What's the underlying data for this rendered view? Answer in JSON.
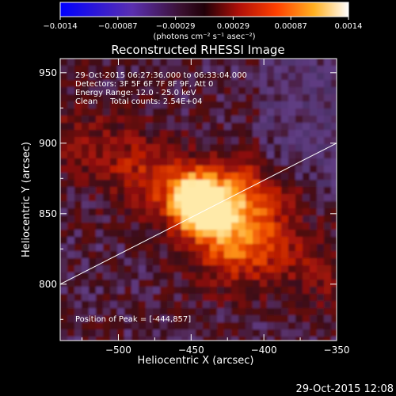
{
  "chart_data": {
    "type": "heatmap",
    "title": "Reconstructed RHESSI Image",
    "xlabel": "Heliocentric X (arcsec)",
    "ylabel": "Heliocentric Y (arcsec)",
    "xlim": [
      -540,
      -350
    ],
    "ylim": [
      760,
      960
    ],
    "xticks": [
      -500,
      -450,
      -400,
      -350
    ],
    "xtick_labels": [
      "−500",
      "−450",
      "−400",
      "−350"
    ],
    "yticks": [
      800,
      850,
      900,
      950
    ],
    "ytick_labels": [
      "800",
      "850",
      "900",
      "950"
    ],
    "annotations": [
      "29-Oct-2015 06:27:36.000 to 06:33:04.000",
      "Detectors: 3F 5F 6F 7F 8F 9F, Att 0",
      "Energy Range: 12.0 - 25.0 keV",
      "Clean     Total counts: 2.54E+04"
    ],
    "peak_label": "Position of Peak = [-444,857]",
    "peak": [
      -444,
      857
    ],
    "limb_line": {
      "x": [
        -540,
        -350
      ],
      "y": [
        800,
        900
      ]
    },
    "colorbar": {
      "ticks": [
        "−0.0014",
        "−0.00087",
        "−0.00029",
        "0.00029",
        "0.00087",
        "0.0014"
      ],
      "unit_label": "(photons cm⁻² s⁻¹ asec⁻²)",
      "range": [
        -0.0014,
        0.0014
      ]
    },
    "footer_date": "29-Oct-2015 12:08",
    "grid": false
  },
  "colors": {
    "background": "#000000",
    "text": "#ffffff",
    "colormap": [
      "#0000ff",
      "#3a1f8a",
      "#4b2a6e",
      "#5a1020",
      "#a01010",
      "#e03000",
      "#ff8000",
      "#ffd040",
      "#ffffff"
    ]
  }
}
